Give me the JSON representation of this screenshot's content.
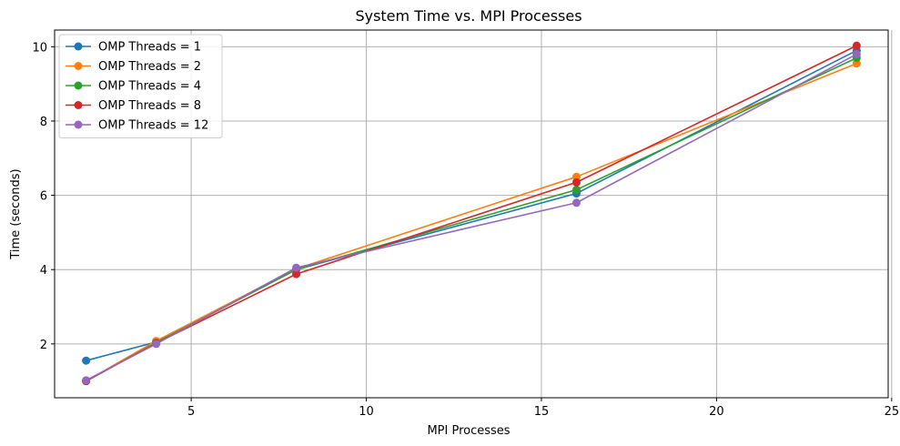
{
  "chart_data": {
    "type": "line",
    "title": "System Time vs. MPI Processes",
    "xlabel": "MPI Processes",
    "ylabel": "Time (seconds)",
    "xlim": [
      1.1,
      24.9
    ],
    "ylim": [
      0.55,
      10.45
    ],
    "xticks": [
      5,
      10,
      15,
      20,
      25
    ],
    "yticks": [
      2,
      4,
      6,
      8,
      10
    ],
    "grid": true,
    "legend_position": "top-left",
    "x": [
      2,
      4,
      8,
      16,
      24
    ],
    "series": [
      {
        "name": "OMP Threads = 1",
        "color": "#1f77b4",
        "values": [
          1.55,
          2.05,
          4.0,
          6.05,
          9.9
        ]
      },
      {
        "name": "OMP Threads = 2",
        "color": "#ff7f0e",
        "values": [
          1.0,
          2.08,
          4.02,
          6.5,
          9.55
        ]
      },
      {
        "name": "OMP Threads = 4",
        "color": "#2ca02c",
        "values": [
          1.0,
          2.03,
          4.0,
          6.15,
          9.7
        ]
      },
      {
        "name": "OMP Threads = 8",
        "color": "#d62728",
        "values": [
          1.0,
          2.02,
          3.88,
          6.35,
          10.03
        ]
      },
      {
        "name": "OMP Threads = 12",
        "color": "#9467bd",
        "values": [
          1.02,
          2.0,
          4.05,
          5.8,
          9.8
        ]
      }
    ]
  }
}
